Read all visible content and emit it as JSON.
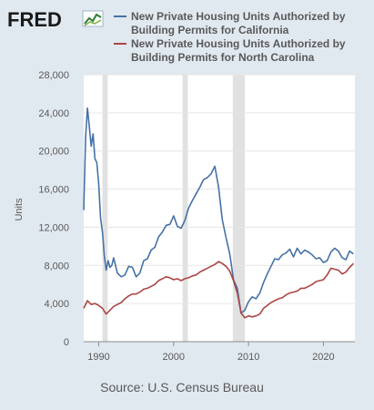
{
  "logo": {
    "text": "FRED"
  },
  "source": "Source: U.S. Census Bureau",
  "chart_data": {
    "type": "line",
    "ylabel": "Units",
    "xlabel": "",
    "xlim": [
      1988.0,
      2024.2
    ],
    "ylim": [
      0,
      28000
    ],
    "y_ticks": [
      0,
      4000,
      8000,
      12000,
      16000,
      20000,
      24000,
      28000
    ],
    "y_tick_labels": [
      "0",
      "4,000",
      "8,000",
      "12,000",
      "16,000",
      "20,000",
      "24,000",
      "28,000"
    ],
    "x_ticks": [
      1990,
      2000,
      2010,
      2020
    ],
    "x_tick_labels": [
      "1990",
      "2000",
      "2010",
      "2020"
    ],
    "grid": true,
    "legend_position": "top",
    "recessions": [
      [
        1990.5,
        1991.2
      ],
      [
        2001.2,
        2001.9
      ],
      [
        2007.9,
        2009.5
      ]
    ],
    "series": [
      {
        "name": "New Private Housing Units Authorized by Building Permits for California",
        "name_lines": [
          "New Private Housing Units Authorized by",
          "Building Permits for California"
        ],
        "color": "#4572a7",
        "x": [
          1988.0,
          1988.25,
          1988.5,
          1988.75,
          1989.0,
          1989.25,
          1989.5,
          1989.75,
          1990.0,
          1990.25,
          1990.5,
          1990.75,
          1991.0,
          1991.25,
          1991.5,
          1991.75,
          1992.0,
          1992.5,
          1993.0,
          1993.5,
          1994.0,
          1994.5,
          1995.0,
          1995.5,
          1996.0,
          1996.5,
          1997.0,
          1997.5,
          1998.0,
          1998.5,
          1999.0,
          1999.5,
          2000.0,
          2000.5,
          2001.0,
          2001.5,
          2002.0,
          2002.5,
          2003.0,
          2003.5,
          2004.0,
          2004.5,
          2005.0,
          2005.5,
          2006.0,
          2006.5,
          2007.0,
          2007.5,
          2008.0,
          2008.5,
          2009.0,
          2009.5,
          2010.0,
          2010.5,
          2011.0,
          2011.5,
          2012.0,
          2012.5,
          2013.0,
          2013.5,
          2014.0,
          2014.5,
          2015.0,
          2015.5,
          2016.0,
          2016.5,
          2017.0,
          2017.5,
          2018.0,
          2018.5,
          2019.0,
          2019.5,
          2020.0,
          2020.5,
          2021.0,
          2021.5,
          2022.0,
          2022.5,
          2023.0,
          2023.5,
          2024.0
        ],
        "values": [
          13800,
          21500,
          24500,
          22500,
          20500,
          21800,
          19200,
          18800,
          16500,
          13000,
          11500,
          9000,
          7500,
          8500,
          7800,
          8000,
          8800,
          7200,
          6800,
          7000,
          7900,
          7800,
          6800,
          7200,
          8500,
          8700,
          9600,
          9900,
          11000,
          11500,
          12200,
          12300,
          13200,
          12100,
          11900,
          12700,
          14000,
          14800,
          15500,
          16200,
          17000,
          17200,
          17600,
          18400,
          16200,
          12800,
          10900,
          9200,
          6500,
          5600,
          3000,
          3300,
          4200,
          4700,
          4500,
          5100,
          6200,
          7100,
          7900,
          8700,
          8600,
          9100,
          9300,
          9700,
          8900,
          9800,
          9200,
          9600,
          9400,
          9100,
          8700,
          8800,
          8300,
          8500,
          9400,
          9800,
          9500,
          8800,
          8600,
          9500,
          9200
        ]
      },
      {
        "name": "New Private Housing Units Authorized by Building Permits for North Carolina",
        "name_lines": [
          "New Private Housing Units Authorized by",
          "Building Permits for North Carolina"
        ],
        "color": "#aa4643",
        "x": [
          1988.0,
          1988.5,
          1989.0,
          1989.5,
          1990.0,
          1990.5,
          1991.0,
          1991.5,
          1992.0,
          1992.5,
          1993.0,
          1993.5,
          1994.0,
          1994.5,
          1995.0,
          1995.5,
          1996.0,
          1996.5,
          1997.0,
          1997.5,
          1998.0,
          1998.5,
          1999.0,
          1999.5,
          2000.0,
          2000.5,
          2001.0,
          2001.5,
          2002.0,
          2002.5,
          2003.0,
          2003.5,
          2004.0,
          2004.5,
          2005.0,
          2005.5,
          2006.0,
          2006.5,
          2007.0,
          2007.5,
          2008.0,
          2008.5,
          2009.0,
          2009.5,
          2010.0,
          2010.5,
          2011.0,
          2011.5,
          2012.0,
          2012.5,
          2013.0,
          2013.5,
          2014.0,
          2014.5,
          2015.0,
          2015.5,
          2016.0,
          2016.5,
          2017.0,
          2017.5,
          2018.0,
          2018.5,
          2019.0,
          2019.5,
          2020.0,
          2020.5,
          2021.0,
          2021.5,
          2022.0,
          2022.5,
          2023.0,
          2023.5,
          2024.0
        ],
        "values": [
          3500,
          4300,
          3900,
          4000,
          3800,
          3500,
          2900,
          3300,
          3700,
          3900,
          4100,
          4500,
          4800,
          5000,
          5000,
          5200,
          5500,
          5600,
          5800,
          6000,
          6400,
          6600,
          6800,
          6700,
          6500,
          6600,
          6400,
          6600,
          6700,
          6900,
          7000,
          7300,
          7500,
          7700,
          7900,
          8100,
          8400,
          8200,
          7900,
          7400,
          6400,
          5100,
          3000,
          2500,
          2700,
          2600,
          2700,
          2900,
          3500,
          3800,
          4100,
          4300,
          4500,
          4600,
          4900,
          5100,
          5200,
          5300,
          5600,
          5600,
          5800,
          6000,
          6300,
          6400,
          6500,
          7000,
          7700,
          7600,
          7500,
          7100,
          7300,
          7800,
          8200
        ]
      }
    ]
  }
}
